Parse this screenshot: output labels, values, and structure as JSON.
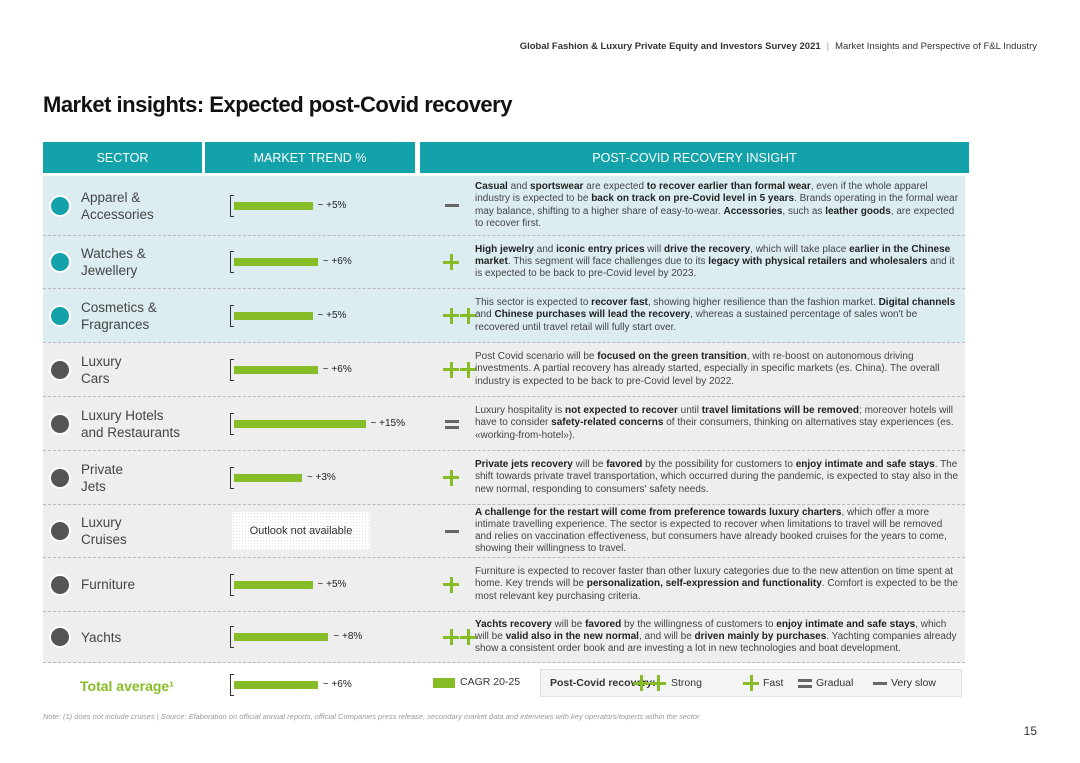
{
  "header": {
    "title": "Global Fashion & Luxury Private Equity and Investors Survey 2021",
    "subtitle": "Market Insights and Perspective of F&L Industry"
  },
  "title": "Market insights: Expected post-Covid recovery",
  "columns": [
    "SECTOR",
    "MARKET TREND %",
    "POST-COVID RECOVERY INSIGHT"
  ],
  "rows": [
    {
      "sector": "Apparel &\nAccessories",
      "trend": {
        "value": 5,
        "label": "~ +5%"
      },
      "recovery": "Very slow",
      "insight": [
        {
          "text": "Casual",
          "bold": true
        },
        {
          "text": " and ",
          "bold": false
        },
        {
          "text": "sportswear",
          "bold": true
        },
        {
          "text": " are expected ",
          "bold": false
        },
        {
          "text": "to recover earlier than formal wear",
          "bold": true
        },
        {
          "text": ", even if the whole apparel industry is expected  to be ",
          "bold": false
        },
        {
          "text": "back on track on pre-Covid level in 5 years",
          "bold": true
        },
        {
          "text": ". Brands operating in the formal wear may balance, shifting to a higher share of easy-to-wear. ",
          "bold": false
        },
        {
          "text": "Accessories",
          "bold": true
        },
        {
          "text": ", such as ",
          "bold": false
        },
        {
          "text": "leather goods",
          "bold": true
        },
        {
          "text": ", are expected to recover first.",
          "bold": false
        }
      ]
    },
    {
      "sector": "Watches &\nJewellery",
      "trend": {
        "value": 6,
        "label": "~ +6%"
      },
      "recovery": "Fast",
      "insight": [
        {
          "text": "High jewelry",
          "bold": true
        },
        {
          "text": " and ",
          "bold": false
        },
        {
          "text": "iconic entry prices",
          "bold": true
        },
        {
          "text": " will ",
          "bold": false
        },
        {
          "text": "drive the recovery",
          "bold": true
        },
        {
          "text": ", which will take place ",
          "bold": false
        },
        {
          "text": "earlier in the Chinese market",
          "bold": true
        },
        {
          "text": ". This segment will face challenges due to its ",
          "bold": false
        },
        {
          "text": "legacy with physical retailers and wholesalers",
          "bold": true
        },
        {
          "text": " and it is expected to be back to pre-Covid level by 2023.",
          "bold": false
        }
      ]
    },
    {
      "sector": "Cosmetics &\nFragrances",
      "trend": {
        "value": 5,
        "label": "~ +5%"
      },
      "recovery": "Strong",
      "insight": [
        {
          "text": "This sector is expected to ",
          "bold": false
        },
        {
          "text": "recover fast",
          "bold": true
        },
        {
          "text": ", showing higher resilience than the fashion market. ",
          "bold": false
        },
        {
          "text": "Digital channels",
          "bold": true
        },
        {
          "text": " and ",
          "bold": false
        },
        {
          "text": "Chinese purchases will lead the recovery",
          "bold": true
        },
        {
          "text": ", whereas a sustained percentage of sales won't be recovered until travel retail will fully start over.",
          "bold": false
        }
      ]
    },
    {
      "sector": "Luxury\nCars",
      "trend": {
        "value": 6,
        "label": "~ +6%"
      },
      "recovery": "Strong",
      "insight": [
        {
          "text": "Post Covid scenario will be ",
          "bold": false
        },
        {
          "text": "focused on the green transition",
          "bold": true
        },
        {
          "text": ", with re-boost on autonomous driving investments. A partial recovery has already started, especially in specific markets (es. China). The overall industry is expected to be back to pre-Covid level by 2022.",
          "bold": false
        }
      ]
    },
    {
      "sector": "Luxury Hotels\nand Restaurants",
      "trend": {
        "value": 15,
        "label": "~ +15%"
      },
      "recovery": "Gradual",
      "insight": [
        {
          "text": "Luxury hospitality is ",
          "bold": false
        },
        {
          "text": "not expected to recover",
          "bold": true
        },
        {
          "text": " until ",
          "bold": false
        },
        {
          "text": "travel limitations will be removed",
          "bold": true
        },
        {
          "text": "; moreover hotels will have to consider ",
          "bold": false
        },
        {
          "text": "safety-related concerns",
          "bold": true
        },
        {
          "text": " of their consumers, thinking on alternatives stay experiences (es. «working-from-hotel»).",
          "bold": false
        }
      ]
    },
    {
      "sector": "Private\nJets",
      "trend": {
        "value": 3,
        "label": "~ +3%"
      },
      "recovery": "Fast",
      "insight": [
        {
          "text": "Private jets recovery",
          "bold": true
        },
        {
          "text": " will be ",
          "bold": false
        },
        {
          "text": "favored",
          "bold": true
        },
        {
          "text": " by the possibility for customers to ",
          "bold": false
        },
        {
          "text": "enjoy intimate and safe stays",
          "bold": true
        },
        {
          "text": ". The shift towards private travel transportation, which occurred during the pandemic, is expected to stay also in the new normal, responding to consumers' safety needs.",
          "bold": false
        }
      ]
    },
    {
      "sector": "Luxury\nCruises",
      "trend": "Outlook not available",
      "recovery": "Very slow",
      "insight": [
        {
          "text": "A challenge for the restart will come from preference towards luxury charters",
          "bold": true
        },
        {
          "text": ", which offer a more intimate travelling experience. The sector is expected to recover when limitations to travel will be removed and relies on vaccination effectiveness, but consumers have already booked cruises for the years to come, showing their willingness to travel.",
          "bold": false
        }
      ]
    },
    {
      "sector": "Furniture",
      "trend": {
        "value": 5,
        "label": "~ +5%"
      },
      "recovery": "Fast",
      "insight": [
        {
          "text": "Furniture is expected to recover faster than other luxury categories due to the new attention on time spent at home. Key trends will be ",
          "bold": false
        },
        {
          "text": "personalization, self-expression and functionality",
          "bold": true
        },
        {
          "text": ". Comfort is expected to be the most relevant key purchasing criteria.",
          "bold": false
        }
      ]
    },
    {
      "sector": "Yachts",
      "trend": {
        "value": 8,
        "label": "~ +8%"
      },
      "recovery": "Strong",
      "insight": [
        {
          "text": "Yachts recovery",
          "bold": true
        },
        {
          "text": " will be ",
          "bold": false
        },
        {
          "text": "favored",
          "bold": true
        },
        {
          "text": " by the willingness of customers to ",
          "bold": false
        },
        {
          "text": "enjoy intimate and safe stays",
          "bold": true
        },
        {
          "text": ", which will be ",
          "bold": false
        },
        {
          "text": "valid also in the new normal",
          "bold": true
        },
        {
          "text": ", and will be ",
          "bold": false
        },
        {
          "text": "driven mainly by purchases",
          "bold": true
        },
        {
          "text": ". Yachting companies already show a consistent order book and are investing a lot in new technologies and boat development.",
          "bold": false
        }
      ]
    }
  ],
  "total": {
    "label": "Total average¹",
    "trend": {
      "value": 6,
      "label": "~ +6%"
    }
  },
  "legend": {
    "cagr": "CAGR 20-25",
    "recovery_title": "Post-Covid recovery:",
    "items": [
      "Strong",
      "Fast",
      "Gradual",
      "Very slow"
    ]
  },
  "note": "Note: (1) does not include  cruises | Source: Elaboration on official annual reports, official Companies press release, secondary market data and interviews with key operators/experts within the sector",
  "page": 15
}
